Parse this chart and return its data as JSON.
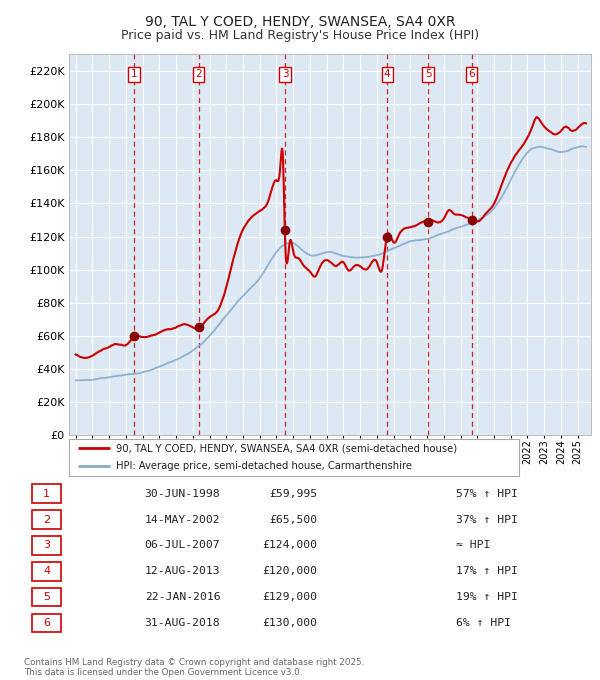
{
  "title": "90, TAL Y COED, HENDY, SWANSEA, SA4 0XR",
  "subtitle": "Price paid vs. HM Land Registry's House Price Index (HPI)",
  "title_fontsize": 10,
  "subtitle_fontsize": 9,
  "bg_color": "#dce9f5",
  "grid_color": "#ffffff",
  "ylim": [
    0,
    230000
  ],
  "yticks": [
    0,
    20000,
    40000,
    60000,
    80000,
    100000,
    120000,
    140000,
    160000,
    180000,
    200000,
    220000
  ],
  "xlim_start": 1994.6,
  "xlim_end": 2025.8,
  "sale_dates_num": [
    1998.49,
    2002.36,
    2007.51,
    2013.62,
    2016.06,
    2018.66
  ],
  "sale_prices": [
    59995,
    65500,
    124000,
    120000,
    129000,
    130000
  ],
  "sale_labels": [
    "1",
    "2",
    "3",
    "4",
    "5",
    "6"
  ],
  "legend_line1": "90, TAL Y COED, HENDY, SWANSEA, SA4 0XR (semi-detached house)",
  "legend_line2": "HPI: Average price, semi-detached house, Carmarthenshire",
  "table_rows": [
    [
      "1",
      "30-JUN-1998",
      "£59,995",
      "57% ↑ HPI"
    ],
    [
      "2",
      "14-MAY-2002",
      "£65,500",
      "37% ↑ HPI"
    ],
    [
      "3",
      "06-JUL-2007",
      "£124,000",
      "≈ HPI"
    ],
    [
      "4",
      "12-AUG-2013",
      "£120,000",
      "17% ↑ HPI"
    ],
    [
      "5",
      "22-JAN-2016",
      "£129,000",
      "19% ↑ HPI"
    ],
    [
      "6",
      "31-AUG-2018",
      "£130,000",
      "6% ↑ HPI"
    ]
  ],
  "footer": "Contains HM Land Registry data © Crown copyright and database right 2025.\nThis data is licensed under the Open Government Licence v3.0.",
  "red_line_color": "#cc0000",
  "blue_line_color": "#88aacc",
  "marker_color": "#880000",
  "dashed_line_color": "#cc0000",
  "hpi_anchors": [
    [
      1995.0,
      33000
    ],
    [
      1996.0,
      34000
    ],
    [
      1997.0,
      35500
    ],
    [
      1998.0,
      37000
    ],
    [
      1999.0,
      38500
    ],
    [
      2000.0,
      41000
    ],
    [
      2001.0,
      45000
    ],
    [
      2002.0,
      51000
    ],
    [
      2003.0,
      60000
    ],
    [
      2004.0,
      72000
    ],
    [
      2005.0,
      84000
    ],
    [
      2006.0,
      95000
    ],
    [
      2007.0,
      110000
    ],
    [
      2008.0,
      115000
    ],
    [
      2009.0,
      108000
    ],
    [
      2010.0,
      110000
    ],
    [
      2011.0,
      108000
    ],
    [
      2012.0,
      107000
    ],
    [
      2013.0,
      108000
    ],
    [
      2014.0,
      112000
    ],
    [
      2015.0,
      116000
    ],
    [
      2016.0,
      118000
    ],
    [
      2017.0,
      122000
    ],
    [
      2018.0,
      126000
    ],
    [
      2019.0,
      130000
    ],
    [
      2020.0,
      138000
    ],
    [
      2021.0,
      155000
    ],
    [
      2022.0,
      172000
    ],
    [
      2023.0,
      175000
    ],
    [
      2024.0,
      172000
    ],
    [
      2025.0,
      175000
    ],
    [
      2025.5,
      175000
    ]
  ],
  "price_anchors": [
    [
      1995.0,
      50000
    ],
    [
      1995.5,
      48000
    ],
    [
      1996.0,
      49000
    ],
    [
      1996.5,
      52000
    ],
    [
      1997.0,
      54000
    ],
    [
      1997.5,
      56000
    ],
    [
      1998.0,
      55000
    ],
    [
      1998.5,
      60000
    ],
    [
      1999.0,
      60000
    ],
    [
      1999.5,
      61000
    ],
    [
      2000.0,
      63000
    ],
    [
      2000.5,
      65000
    ],
    [
      2001.0,
      66000
    ],
    [
      2001.5,
      68000
    ],
    [
      2002.0,
      66000
    ],
    [
      2002.4,
      65500
    ],
    [
      2002.8,
      70000
    ],
    [
      2003.0,
      72000
    ],
    [
      2003.5,
      76000
    ],
    [
      2004.0,
      90000
    ],
    [
      2004.5,
      110000
    ],
    [
      2005.0,
      125000
    ],
    [
      2005.5,
      132000
    ],
    [
      2006.0,
      136000
    ],
    [
      2006.5,
      142000
    ],
    [
      2007.0,
      155000
    ],
    [
      2007.2,
      160000
    ],
    [
      2007.4,
      165000
    ],
    [
      2007.5,
      124000
    ],
    [
      2007.8,
      118000
    ],
    [
      2008.0,
      112000
    ],
    [
      2008.3,
      108000
    ],
    [
      2008.6,
      104000
    ],
    [
      2009.0,
      100000
    ],
    [
      2009.3,
      97000
    ],
    [
      2009.6,
      103000
    ],
    [
      2010.0,
      107000
    ],
    [
      2010.3,
      105000
    ],
    [
      2010.6,
      103000
    ],
    [
      2011.0,
      105000
    ],
    [
      2011.3,
      100000
    ],
    [
      2011.6,
      102000
    ],
    [
      2012.0,
      102000
    ],
    [
      2012.3,
      100000
    ],
    [
      2012.6,
      103000
    ],
    [
      2013.0,
      105000
    ],
    [
      2013.3,
      100000
    ],
    [
      2013.6,
      120000
    ],
    [
      2013.9,
      118000
    ],
    [
      2014.0,
      116000
    ],
    [
      2014.3,
      120000
    ],
    [
      2014.6,
      124000
    ],
    [
      2015.0,
      125000
    ],
    [
      2015.5,
      127000
    ],
    [
      2016.0,
      129000
    ],
    [
      2016.5,
      128000
    ],
    [
      2017.0,
      130000
    ],
    [
      2017.3,
      135000
    ],
    [
      2017.6,
      133000
    ],
    [
      2018.0,
      132000
    ],
    [
      2018.5,
      130000
    ],
    [
      2018.7,
      130000
    ],
    [
      2019.0,
      128000
    ],
    [
      2019.5,
      132000
    ],
    [
      2020.0,
      138000
    ],
    [
      2020.5,
      150000
    ],
    [
      2021.0,
      162000
    ],
    [
      2021.5,
      170000
    ],
    [
      2022.0,
      178000
    ],
    [
      2022.3,
      185000
    ],
    [
      2022.5,
      190000
    ],
    [
      2022.8,
      188000
    ],
    [
      2023.0,
      185000
    ],
    [
      2023.3,
      182000
    ],
    [
      2023.6,
      180000
    ],
    [
      2024.0,
      182000
    ],
    [
      2024.3,
      185000
    ],
    [
      2024.6,
      183000
    ],
    [
      2025.0,
      185000
    ],
    [
      2025.5,
      188000
    ]
  ]
}
